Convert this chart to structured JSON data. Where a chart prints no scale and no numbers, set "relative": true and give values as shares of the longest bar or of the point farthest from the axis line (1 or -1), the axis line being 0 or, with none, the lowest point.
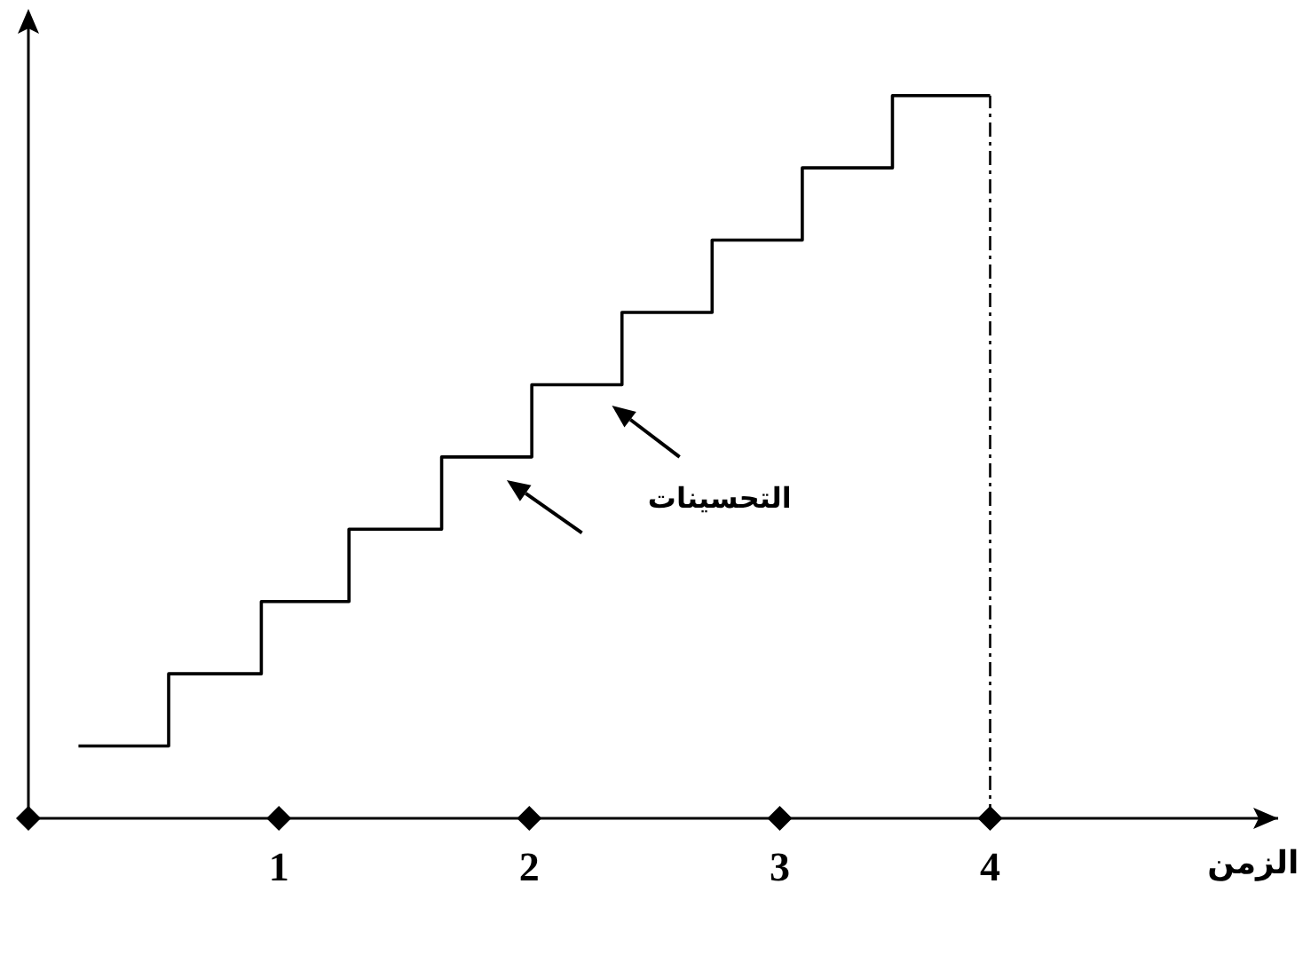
{
  "chart_data": {
    "type": "step",
    "relative": true,
    "xlabel": "الزمن",
    "color": "#000000",
    "x": [
      0.2,
      0.56,
      0.93,
      1.28,
      1.65,
      2.01,
      2.37,
      2.73,
      3.09,
      3.45,
      3.84
    ],
    "values": [
      0.1,
      0.2,
      0.3,
      0.4,
      0.5,
      0.6,
      0.7,
      0.8,
      0.9,
      1.0,
      1.0
    ],
    "xlim": [
      0,
      4.99
    ],
    "xticks": [
      {
        "value": 0,
        "label": null
      },
      1,
      2,
      3,
      {
        "value": 3.84,
        "label": "4"
      }
    ],
    "ref_lines": [
      {
        "axis": "x",
        "value": 3.84,
        "line_style": "dashdot"
      }
    ],
    "annotations": [
      "التحسينات"
    ]
  }
}
